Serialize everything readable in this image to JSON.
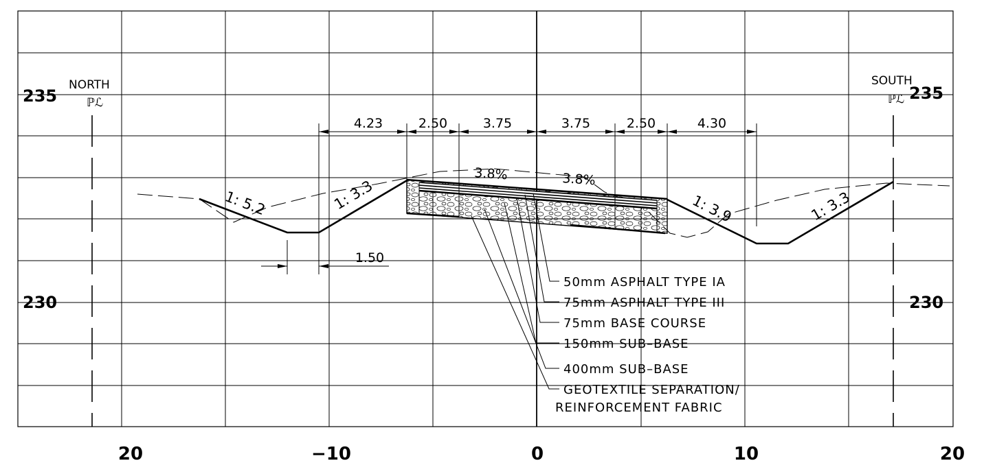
{
  "axis": {
    "x_ticks": [
      "20",
      "−10",
      "0",
      "10",
      "20"
    ],
    "elev_left": [
      "235",
      "230"
    ],
    "elev_right": [
      "235",
      "230"
    ]
  },
  "property_lines": {
    "north_label": "NORTH",
    "south_label": "SOUTH",
    "symbol": "ℙℒ"
  },
  "dimensions": {
    "top": [
      "4.23",
      "2.50",
      "3.75",
      "3.75",
      "2.50",
      "4.30"
    ],
    "ditch_bottom": "1.50"
  },
  "crossfalls": [
    "3.8%",
    "3.8%"
  ],
  "slopes": [
    "1: 5.2",
    "1: 3.3",
    "1: 3.9",
    "1: 3.3"
  ],
  "layers": [
    "50mm  ASPHALT  TYPE  IA",
    "75mm  ASPHALT  TYPE  III",
    "75mm  BASE  COURSE",
    "150mm  SUB–BASE",
    "400mm  SUB–BASE",
    "GEOTEXTILE  SEPARATION/",
    "REINFORCEMENT  FABRIC"
  ],
  "colors": {
    "line": "#000000",
    "background": "#ffffff"
  }
}
